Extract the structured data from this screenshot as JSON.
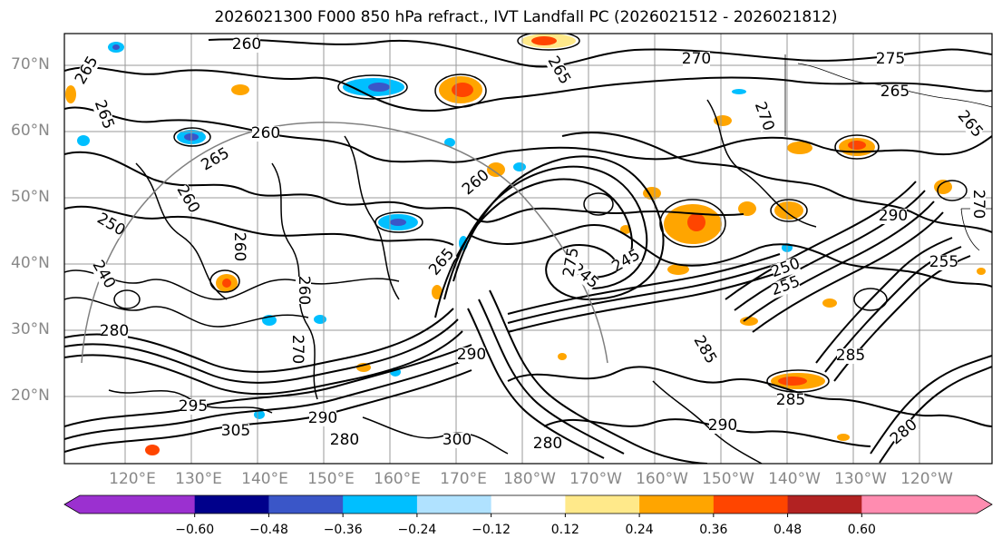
{
  "title": "2026021300 F000 850 hPa refract., IVT Landfall PC (2026021512 - 2026021812)",
  "lat_labels": [
    "70°N",
    "60°N",
    "50°N",
    "40°N",
    "30°N",
    "20°N"
  ],
  "lon_labels": [
    "120°E",
    "130°E",
    "140°E",
    "150°E",
    "160°E",
    "170°E",
    "180°W",
    "170°W",
    "160°W",
    "150°W",
    "140°W",
    "130°W",
    "120°W"
  ],
  "colorbar": {
    "tick_labels": [
      "−0.60",
      "−0.48",
      "−0.36",
      "−0.24",
      "−0.12",
      "0.12",
      "0.24",
      "0.36",
      "0.48",
      "0.60"
    ],
    "colors": [
      "#9b30d0",
      "#00008b",
      "#3a56c8",
      "#00bfff",
      "#b0e2ff",
      "#ffffff",
      "#ffe98a",
      "#ffa500",
      "#ff4500",
      "#b22222",
      "#ff8cb0"
    ]
  },
  "contour_labels": [
    "260",
    "270",
    "275",
    "265",
    "265",
    "260",
    "265",
    "265",
    "270",
    "265",
    "260",
    "255",
    "265",
    "260",
    "245",
    "270",
    "245",
    "240",
    "250",
    "255",
    "260",
    "280",
    "295",
    "305",
    "290",
    "300",
    "290",
    "285",
    "270",
    "285",
    "280",
    "290",
    "280",
    "285",
    "280",
    "260",
    "265",
    "290",
    "250",
    "275"
  ],
  "colors": {
    "contour": "#000000",
    "grid": "#9a9a9a",
    "label": "#888888"
  }
}
